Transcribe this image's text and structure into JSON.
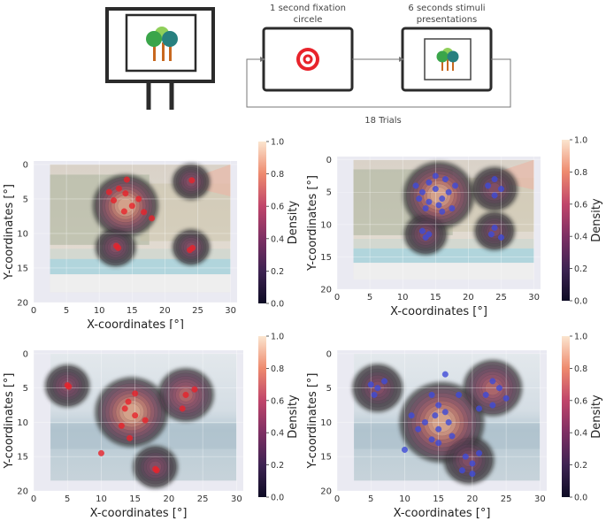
{
  "diagram": {
    "fixation_label_line1": "1 second fixation",
    "fixation_label_line2": "circele",
    "stimuli_label_line1": "6 seconds stimuli",
    "stimuli_label_line2": "presentations",
    "trials_label": "18 Trials",
    "colors": {
      "target_red": "#e8232b",
      "tree_green": "#3aa54a",
      "tree_teal": "#27807f",
      "trunk": "#c8681f",
      "stroke": "#2b2b2b"
    }
  },
  "chart_data": [
    {
      "type": "scatter",
      "overlay": "kde-density",
      "background": "beach-photo",
      "xlabel": "X-coordinates [°]",
      "ylabel": "Y-coordinates [°]",
      "colorbar_label": "Density",
      "xlim": [
        0,
        31
      ],
      "ylim": [
        20,
        -0.5
      ],
      "xticks": [
        "0",
        "5",
        "10",
        "15",
        "20",
        "25",
        "30"
      ],
      "yticks": [
        "0",
        "5",
        "10",
        "15",
        "20"
      ],
      "colorbar_ticks": [
        "0.0",
        "0.2",
        "0.4",
        "0.6",
        "0.8",
        "1.0"
      ],
      "marker_color": "#e8232b",
      "clusters": [
        {
          "x": 14,
          "y": 6,
          "s": 2.4,
          "w": 1.0
        },
        {
          "x": 12.5,
          "y": 12,
          "s": 1.5,
          "w": 0.55
        },
        {
          "x": 24,
          "y": 2.5,
          "s": 1.4,
          "w": 0.5
        },
        {
          "x": 24,
          "y": 12,
          "s": 1.4,
          "w": 0.5
        }
      ],
      "points": [
        [
          11.5,
          4
        ],
        [
          12.2,
          5.2
        ],
        [
          13,
          3.5
        ],
        [
          14,
          4.2
        ],
        [
          15,
          6
        ],
        [
          16,
          5
        ],
        [
          13.8,
          6.8
        ],
        [
          16.8,
          6.9
        ],
        [
          18,
          7.8
        ],
        [
          14.2,
          2.2
        ],
        [
          12.6,
          11.8
        ],
        [
          12.9,
          12.1
        ],
        [
          24.1,
          2.3
        ],
        [
          24.2,
          12.1
        ],
        [
          23.8,
          12.4
        ]
      ]
    },
    {
      "type": "scatter",
      "overlay": "kde-density",
      "background": "beach-photo",
      "xlabel": "X-coordinates [°]",
      "ylabel": "Y-coordinates [°]",
      "colorbar_label": "Density",
      "xlim": [
        0,
        31
      ],
      "ylim": [
        20,
        -0.5
      ],
      "xticks": [
        "0",
        "5",
        "10",
        "15",
        "20",
        "25",
        "30"
      ],
      "yticks": [
        "0",
        "5",
        "10",
        "15",
        "20"
      ],
      "colorbar_ticks": [
        "0.0",
        "0.2",
        "0.4",
        "0.6",
        "0.8",
        "1.0"
      ],
      "marker_color": "#3f4bd8",
      "clusters": [
        {
          "x": 15.5,
          "y": 5.5,
          "s": 2.6,
          "w": 1.0
        },
        {
          "x": 13.5,
          "y": 11.5,
          "s": 1.6,
          "w": 0.5
        },
        {
          "x": 24,
          "y": 4.5,
          "s": 1.7,
          "w": 0.5
        },
        {
          "x": 24,
          "y": 11,
          "s": 1.5,
          "w": 0.45
        }
      ],
      "points": [
        [
          12,
          4
        ],
        [
          13,
          5
        ],
        [
          14,
          3.5
        ],
        [
          15,
          4.5
        ],
        [
          16,
          6
        ],
        [
          17,
          5
        ],
        [
          14,
          6.5
        ],
        [
          15.5,
          7
        ],
        [
          17.5,
          7.5
        ],
        [
          12.5,
          6
        ],
        [
          16.5,
          3
        ],
        [
          18,
          4
        ],
        [
          13.5,
          7.5
        ],
        [
          15,
          2.5
        ],
        [
          16,
          8
        ],
        [
          13,
          11
        ],
        [
          13.5,
          12
        ],
        [
          14,
          11.5
        ],
        [
          24,
          3
        ],
        [
          23,
          4
        ],
        [
          25,
          4.5
        ],
        [
          24,
          5.5
        ],
        [
          24,
          10.5
        ],
        [
          23.5,
          11.5
        ],
        [
          25,
          12
        ]
      ]
    },
    {
      "type": "scatter",
      "overlay": "kde-density",
      "background": "sea-photo",
      "xlabel": "X-coordinates [°]",
      "ylabel": "Y-coordinates [°]",
      "colorbar_label": "Density",
      "xlim": [
        0,
        31
      ],
      "ylim": [
        20,
        -0.5
      ],
      "xticks": [
        "0",
        "5",
        "10",
        "15",
        "20",
        "25",
        "30"
      ],
      "yticks": [
        "0",
        "5",
        "10",
        "15",
        "20"
      ],
      "colorbar_ticks": [
        "0.0",
        "0.2",
        "0.4",
        "0.6",
        "0.8",
        "1.0"
      ],
      "marker_color": "#e8232b",
      "clusters": [
        {
          "x": 14.5,
          "y": 8.5,
          "s": 2.6,
          "w": 1.0
        },
        {
          "x": 5,
          "y": 4.7,
          "s": 1.6,
          "w": 0.5
        },
        {
          "x": 22.5,
          "y": 6,
          "s": 2.0,
          "w": 0.65
        },
        {
          "x": 18,
          "y": 16.5,
          "s": 1.6,
          "w": 0.5
        }
      ],
      "points": [
        [
          5,
          4.6
        ],
        [
          5.2,
          4.8
        ],
        [
          15,
          5.8
        ],
        [
          14,
          7
        ],
        [
          15,
          9
        ],
        [
          13,
          10.5
        ],
        [
          16.5,
          9.7
        ],
        [
          14.2,
          12.3
        ],
        [
          13.5,
          8
        ],
        [
          10,
          14.5
        ],
        [
          22.5,
          6
        ],
        [
          23.8,
          5.2
        ],
        [
          22,
          8
        ],
        [
          18,
          16.8
        ],
        [
          18.2,
          17
        ]
      ]
    },
    {
      "type": "scatter",
      "overlay": "kde-density",
      "background": "sea-photo",
      "xlabel": "X-coordinates [°]",
      "ylabel": "Y-coordinates [°]",
      "colorbar_label": "Density",
      "xlim": [
        0,
        31
      ],
      "ylim": [
        20,
        -0.5
      ],
      "xticks": [
        "0",
        "5",
        "10",
        "15",
        "20",
        "25",
        "30"
      ],
      "yticks": [
        "0",
        "5",
        "10",
        "15",
        "20"
      ],
      "colorbar_ticks": [
        "0.0",
        "0.2",
        "0.4",
        "0.6",
        "0.8",
        "1.0"
      ],
      "marker_color": "#3f4bd8",
      "clusters": [
        {
          "x": 15.5,
          "y": 10,
          "s": 3.0,
          "w": 1.0
        },
        {
          "x": 6,
          "y": 5,
          "s": 1.8,
          "w": 0.5
        },
        {
          "x": 23,
          "y": 5,
          "s": 2.1,
          "w": 0.65
        },
        {
          "x": 19.5,
          "y": 15.5,
          "s": 1.8,
          "w": 0.5
        }
      ],
      "points": [
        [
          5,
          4.5
        ],
        [
          6,
          5
        ],
        [
          7,
          4
        ],
        [
          5.5,
          6
        ],
        [
          14,
          6
        ],
        [
          15,
          7.5
        ],
        [
          16,
          8.5
        ],
        [
          14.5,
          9
        ],
        [
          13,
          10
        ],
        [
          16.5,
          10
        ],
        [
          15,
          11
        ],
        [
          14,
          12.5
        ],
        [
          17,
          12
        ],
        [
          12,
          11
        ],
        [
          16,
          3
        ],
        [
          18,
          6
        ],
        [
          11,
          9
        ],
        [
          15,
          13
        ],
        [
          10,
          14
        ],
        [
          23,
          4
        ],
        [
          24,
          5
        ],
        [
          22,
          6
        ],
        [
          25,
          6.5
        ],
        [
          23,
          7.5
        ],
        [
          21,
          8
        ],
        [
          19,
          15
        ],
        [
          20,
          16
        ],
        [
          18.5,
          17
        ],
        [
          21,
          14.5
        ],
        [
          20,
          17.5
        ]
      ]
    }
  ]
}
